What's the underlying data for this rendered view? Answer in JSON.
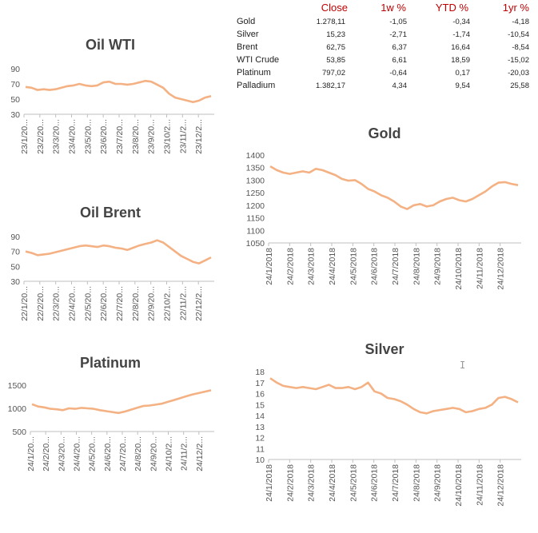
{
  "table": {
    "headers": [
      "Close",
      "1w %",
      "YTD %",
      "1yr %"
    ],
    "rows": [
      {
        "name": "Gold",
        "values": [
          "1.278,11",
          "-1,05",
          "-0,34",
          "-4,18"
        ]
      },
      {
        "name": "Silver",
        "values": [
          "15,23",
          "-2,71",
          "-1,74",
          "-10,54"
        ]
      },
      {
        "name": "Brent",
        "values": [
          "62,75",
          "6,37",
          "16,64",
          "-8,54"
        ]
      },
      {
        "name": "WTI Crude",
        "values": [
          "53,85",
          "6,61",
          "18,59",
          "-15,02"
        ]
      },
      {
        "name": "Platinum",
        "values": [
          "797,02",
          "-0,64",
          "0,17",
          "-20,03"
        ]
      },
      {
        "name": "Palladium",
        "values": [
          "1.382,17",
          "4,34",
          "9,54",
          "25,58"
        ]
      }
    ]
  },
  "cursor_glyph": "I",
  "series_color": "#f4b183",
  "chart_data": [
    {
      "id": "wti",
      "type": "line",
      "title": "Oil WTI",
      "ylim": [
        30,
        90
      ],
      "yticks": [
        30,
        50,
        70,
        90
      ],
      "x_labels": [
        "23/1/20...",
        "23/2/20...",
        "23/3/20...",
        "23/4/20...",
        "23/5/20...",
        "23/6/20...",
        "23/7/20...",
        "23/8/20...",
        "23/9/20...",
        "23/10/2...",
        "23/11/2...",
        "23/12/2..."
      ],
      "values": [
        66,
        65,
        62,
        63,
        62,
        63,
        65,
        67,
        68,
        70,
        68,
        67,
        68,
        72,
        73,
        70,
        70,
        69,
        70,
        72,
        74,
        73,
        69,
        65,
        57,
        52,
        50,
        48,
        46,
        48,
        52,
        54
      ]
    },
    {
      "id": "brent",
      "type": "line",
      "title": "Oil Brent",
      "ylim": [
        30,
        90
      ],
      "yticks": [
        30,
        50,
        70,
        90
      ],
      "x_labels": [
        "22/1/20...",
        "22/2/20...",
        "22/3/20...",
        "22/4/20...",
        "22/5/20...",
        "22/6/20...",
        "22/7/20...",
        "22/8/20...",
        "22/9/20...",
        "22/10/2...",
        "22/11/2...",
        "22/12/2..."
      ],
      "values": [
        70,
        68,
        65,
        66,
        67,
        69,
        71,
        73,
        75,
        77,
        78,
        77,
        76,
        78,
        77,
        75,
        74,
        72,
        75,
        78,
        80,
        82,
        85,
        82,
        76,
        70,
        64,
        60,
        56,
        54,
        58,
        62
      ]
    },
    {
      "id": "platinum",
      "type": "line",
      "title": "Platinum",
      "ylim": [
        500,
        1500
      ],
      "yticks": [
        500,
        1000,
        1500
      ],
      "x_labels": [
        "24/1/20...",
        "24/2/20...",
        "24/3/20...",
        "24/4/20...",
        "24/5/20...",
        "24/6/20...",
        "24/7/20...",
        "24/8/20...",
        "24/9/20...",
        "24/10/2...",
        "24/11/2...",
        "24/12/2..."
      ],
      "values": [
        1090,
        1040,
        1020,
        990,
        980,
        960,
        1000,
        990,
        1010,
        1000,
        990,
        960,
        940,
        920,
        900,
        930,
        970,
        1010,
        1050,
        1060,
        1080,
        1100,
        1140,
        1180,
        1220,
        1260,
        1300,
        1330,
        1360,
        1390
      ]
    },
    {
      "id": "gold",
      "type": "line",
      "title": "Gold",
      "ylim": [
        1050,
        1400
      ],
      "yticks": [
        1050,
        1100,
        1150,
        1200,
        1250,
        1300,
        1350,
        1400
      ],
      "x_labels": [
        "24/1/2018",
        "24/2/2018",
        "24/3/2018",
        "24/4/2018",
        "24/5/2018",
        "24/6/2018",
        "24/7/2018",
        "24/8/2018",
        "24/9/2018",
        "24/10/2018",
        "24/11/2018",
        "24/12/2018"
      ],
      "values": [
        1355,
        1340,
        1330,
        1325,
        1330,
        1335,
        1330,
        1345,
        1340,
        1330,
        1320,
        1305,
        1298,
        1300,
        1285,
        1265,
        1255,
        1240,
        1230,
        1215,
        1195,
        1185,
        1200,
        1205,
        1195,
        1200,
        1215,
        1225,
        1230,
        1220,
        1215,
        1225,
        1240,
        1255,
        1275,
        1290,
        1292,
        1285,
        1280
      ]
    },
    {
      "id": "silver",
      "type": "line",
      "title": "Silver",
      "ylim": [
        10,
        18
      ],
      "yticks": [
        10,
        11,
        12,
        13,
        14,
        15,
        16,
        17,
        18
      ],
      "x_labels": [
        "24/1/2018",
        "24/2/2018",
        "24/3/2018",
        "24/4/2018",
        "24/5/2018",
        "24/6/2018",
        "24/7/2018",
        "24/8/2018",
        "24/9/2018",
        "24/10/2018",
        "24/11/2018",
        "24/12/2018"
      ],
      "values": [
        17.4,
        17.0,
        16.7,
        16.6,
        16.5,
        16.6,
        16.5,
        16.4,
        16.6,
        16.8,
        16.5,
        16.5,
        16.6,
        16.4,
        16.6,
        17.0,
        16.2,
        16.0,
        15.6,
        15.5,
        15.3,
        15.0,
        14.6,
        14.3,
        14.2,
        14.4,
        14.5,
        14.6,
        14.7,
        14.6,
        14.3,
        14.4,
        14.6,
        14.7,
        15.0,
        15.6,
        15.7,
        15.5,
        15.2
      ]
    }
  ]
}
